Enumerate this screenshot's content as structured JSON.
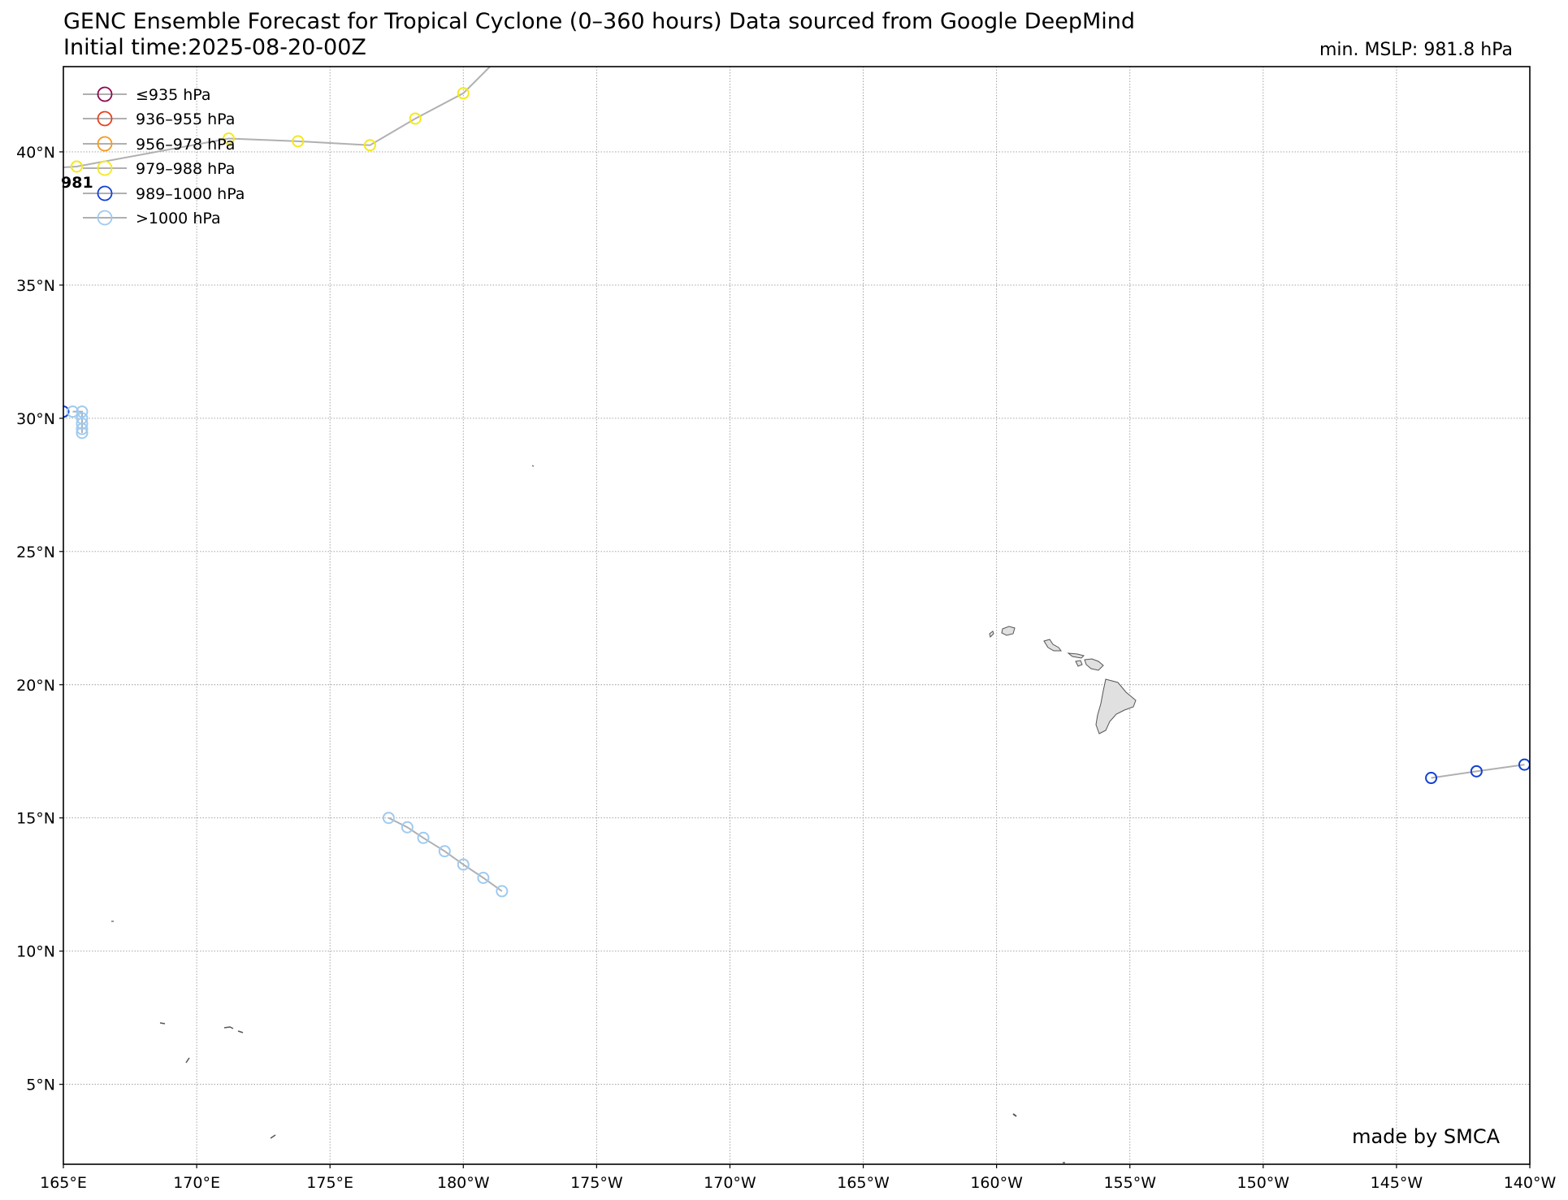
{
  "header": {
    "title_line1": "GENC Ensemble Forecast for Tropical Cyclone (0–360 hours) Data sourced from Google DeepMind",
    "title_line2": "Initial time:2025-08-20-00Z",
    "min_mslp": "min. MSLP: 981.8 hPa"
  },
  "credit": "made by SMCA",
  "map": {
    "lon_range": [
      165,
      220
    ],
    "lat_range": [
      2,
      43.2
    ],
    "gridlines": true,
    "lon_ticks": [
      {
        "value": 165,
        "label": "165°E"
      },
      {
        "value": 170,
        "label": "170°E"
      },
      {
        "value": 175,
        "label": "175°E"
      },
      {
        "value": 180,
        "label": "180°W"
      },
      {
        "value": 185,
        "label": "175°W"
      },
      {
        "value": 190,
        "label": "170°W"
      },
      {
        "value": 195,
        "label": "165°W"
      },
      {
        "value": 200,
        "label": "160°W"
      },
      {
        "value": 205,
        "label": "155°W"
      },
      {
        "value": 210,
        "label": "150°W"
      },
      {
        "value": 215,
        "label": "145°W"
      },
      {
        "value": 220,
        "label": "140°W"
      }
    ],
    "lat_ticks": [
      {
        "value": 5,
        "label": "5°N"
      },
      {
        "value": 10,
        "label": "10°N"
      },
      {
        "value": 15,
        "label": "15°N"
      },
      {
        "value": 20,
        "label": "20°N"
      },
      {
        "value": 25,
        "label": "25°N"
      },
      {
        "value": 30,
        "label": "30°N"
      },
      {
        "value": 35,
        "label": "35°N"
      },
      {
        "value": 40,
        "label": "40°N"
      }
    ],
    "land_color": "#e0e0e0",
    "track_line_color": "#b0b0b0"
  },
  "legend": {
    "placement": "top-left",
    "entries": [
      {
        "label": "≤935 hPa",
        "color": "#8b0a50"
      },
      {
        "label": "936–955 hPa",
        "color": "#e8401c"
      },
      {
        "label": "956–978 hPa",
        "color": "#f39a1f"
      },
      {
        "label": "979–988 hPa",
        "color": "#f5e81a"
      },
      {
        "label": "989–1000 hPa",
        "color": "#1240d8"
      },
      {
        "label": ">1000 hPa",
        "color": "#9fcaf0"
      }
    ]
  },
  "chart_data": {
    "type": "map-tracks",
    "tracks": [
      {
        "category": "979–988 hPa",
        "color": "#f5e81a",
        "lon": [
          163.0,
          165.5,
          171.2,
          173.8,
          176.5,
          178.2,
          180.0,
          181.0
        ],
        "lat": [
          39.3,
          39.45,
          40.5,
          40.4,
          40.25,
          41.25,
          42.2,
          43.2
        ],
        "markers": [
          false,
          true,
          true,
          true,
          true,
          true,
          true,
          false
        ],
        "label": "981"
      },
      {
        "category": "989–1000 hPa",
        "color": "#1240d8",
        "lon": [
          165.0
        ],
        "lat": [
          30.25
        ],
        "markers": [
          true
        ]
      },
      {
        "category": ">1000 hPa",
        "color": "#9fcaf0",
        "lon": [
          165.35,
          165.7,
          165.7,
          165.7,
          165.7,
          165.7
        ],
        "lat": [
          30.25,
          30.25,
          30.0,
          29.8,
          29.6,
          29.45
        ],
        "markers": [
          true,
          true,
          true,
          true,
          true,
          true
        ]
      },
      {
        "category": ">1000 hPa",
        "color": "#9fcaf0",
        "lon": [
          177.2,
          177.9,
          178.5,
          179.3,
          180.0,
          180.75,
          181.45
        ],
        "lat": [
          15.0,
          14.65,
          14.25,
          13.75,
          13.25,
          12.75,
          12.25
        ],
        "markers": [
          true,
          true,
          true,
          true,
          true,
          true,
          true
        ]
      },
      {
        "category": "989–1000 hPa",
        "color": "#1240d8",
        "lon": [
          216.3,
          218.0,
          219.8
        ],
        "lat": [
          16.5,
          16.75,
          17.0
        ],
        "markers": [
          true,
          true,
          true
        ]
      }
    ]
  }
}
